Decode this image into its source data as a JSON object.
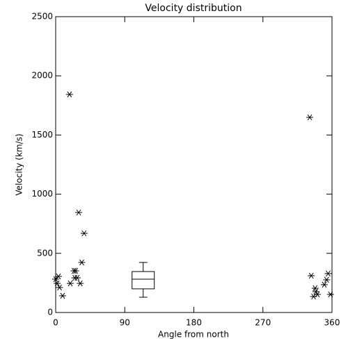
{
  "chart_data": {
    "type": "scatter",
    "title": "Velocity distribution",
    "x_label": "Angle from north",
    "y_label": "Velocity (km/s)",
    "x": [
      0,
      3.6,
      2,
      5,
      9,
      18,
      19,
      24,
      26,
      25,
      28,
      32,
      30,
      34,
      37,
      331,
      333,
      336,
      339,
      341,
      338,
      350,
      353,
      355,
      358
    ],
    "values": [
      282,
      305,
      246,
      211,
      141,
      1843,
      246,
      352,
      352,
      293,
      293,
      246,
      845,
      423,
      669,
      1649,
      311,
      135,
      176,
      153,
      205,
      235,
      276,
      329,
      153
    ],
    "color": "#000000",
    "box": {
      "position": 114,
      "whisker_low": 129,
      "q1": 200,
      "median": 282,
      "q3": 346,
      "whisker_high": 423
    },
    "xlim": [
      0,
      360
    ],
    "xticks": [
      0,
      90,
      180,
      270,
      360
    ],
    "ylim": [
      0,
      2500
    ],
    "yticks": [
      0,
      500,
      1000,
      1500,
      2000,
      2500
    ]
  }
}
